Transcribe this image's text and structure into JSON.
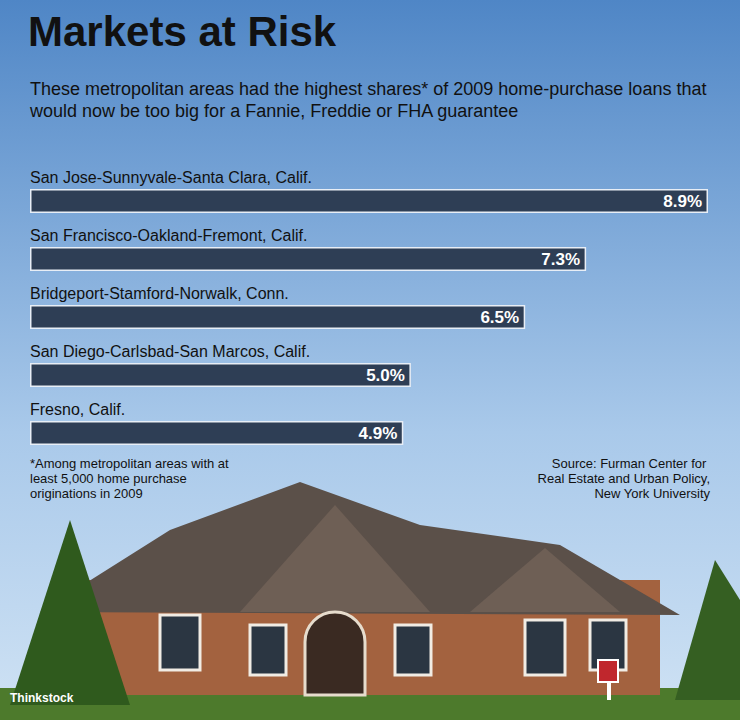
{
  "chart_data": {
    "type": "bar",
    "orientation": "horizontal",
    "title": "Markets at Risk",
    "subtitle": "These metropolitan areas had the highest shares* of 2009 home-purchase loans that would now be too big for a Fannie, Freddie or FHA guarantee",
    "categories": [
      "San Jose-Sunnyvale-Santa Clara, Calif.",
      "San Francisco-Oakland-Fremont, Calif.",
      "Bridgeport-Stamford-Norwalk, Conn.",
      "San Diego-Carlsbad-San Marcos, Calif.",
      "Fresno, Calif."
    ],
    "values": [
      8.9,
      7.3,
      6.5,
      5.0,
      4.9
    ],
    "value_labels": [
      "8.9%",
      "7.3%",
      "6.5%",
      "5.0%",
      "4.9%"
    ],
    "data_labels": true,
    "color": "#2e3e55",
    "xlim": [
      0,
      8.9
    ],
    "tick_labels": false,
    "grid": false,
    "footnote": "*Among metropolitan areas with at least 5,000 home purchase originations in 2009",
    "source": "Source: Furman Center for Real Estate and Urban Policy, New York University",
    "credit": "Thinkstock"
  }
}
